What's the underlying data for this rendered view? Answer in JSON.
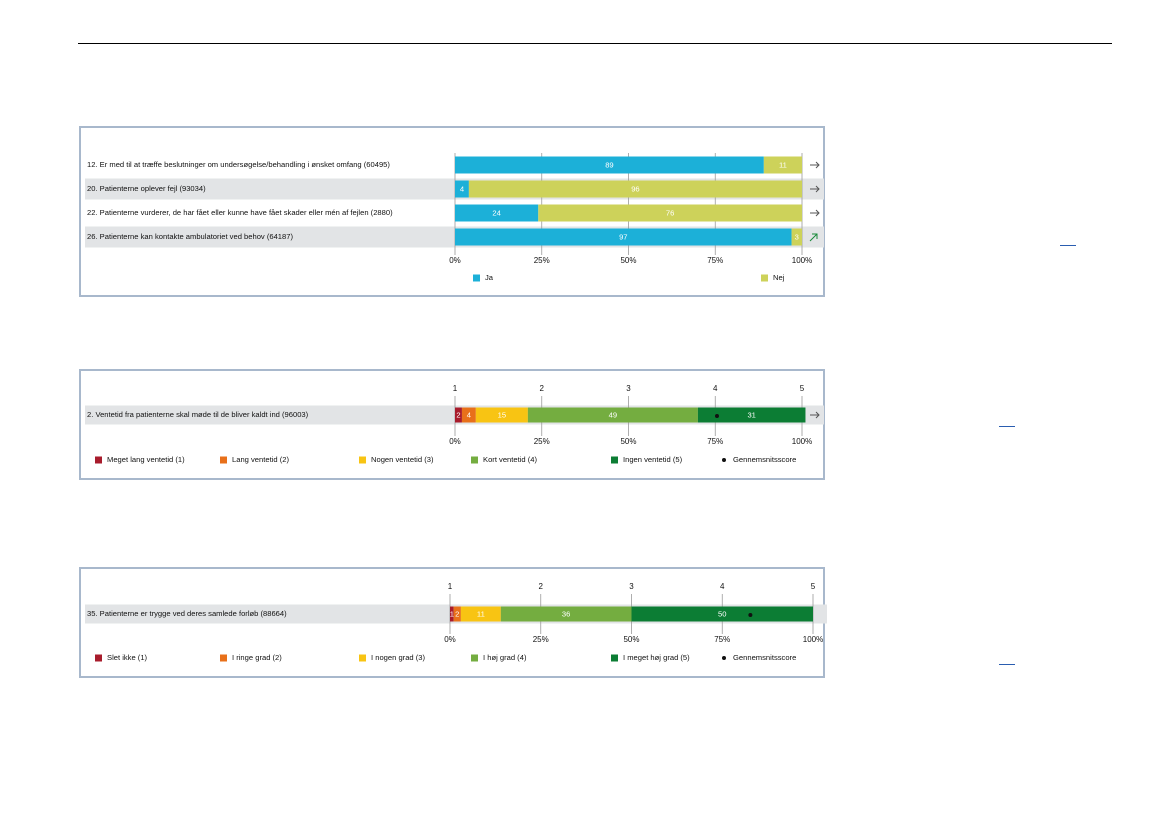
{
  "colors": {
    "ja": "#1cb0d8",
    "nej": "#cdd25a",
    "scale5": [
      "#a81c2c",
      "#e8701a",
      "#f8c413",
      "#74ad40",
      "#0c7d34"
    ],
    "panel_border": "#a8b8cc",
    "row_highlight": "#e2e4e6",
    "grid": "#9a9a9a",
    "trend_up": "#1a8a3a",
    "trend_flat": "#555555"
  },
  "chart_data": [
    {
      "type": "bar",
      "stacked": true,
      "orientation": "horizontal",
      "categories": [
        "12. Er med til at træffe beslutninger om undersøgelse/behandling i ønsket omfang (60495)",
        "20. Patienterne oplever fejl (93034)",
        "22. Patienterne vurderer, de har fået eller kunne have fået skader eller mén af fejlen (2880)",
        "26. Patienterne kan kontakte ambulatoriet ved behov (64187)"
      ],
      "series": [
        {
          "name": "Ja",
          "values": [
            89,
            4,
            24,
            97
          ]
        },
        {
          "name": "Nej",
          "values": [
            11,
            96,
            76,
            3
          ]
        }
      ],
      "highlight_rows": [
        1,
        3
      ],
      "trend_icons": [
        "arrow-right-icon",
        "arrow-right-icon",
        "arrow-right-icon",
        "arrow-up-right-icon"
      ],
      "x_ticks": [
        "0%",
        "25%",
        "50%",
        "75%",
        "100%"
      ],
      "xlim": [
        0,
        100
      ],
      "legend_position": "bottom",
      "grid": true
    },
    {
      "type": "bar",
      "stacked": true,
      "orientation": "horizontal",
      "categories": [
        "2. Ventetid fra patienterne skal møde til de bliver kaldt ind (96003)"
      ],
      "series": [
        {
          "name": "Meget lang ventetid (1)",
          "values": [
            2
          ]
        },
        {
          "name": "Lang ventetid (2)",
          "values": [
            4
          ]
        },
        {
          "name": "Nogen ventetid (3)",
          "values": [
            15
          ]
        },
        {
          "name": "Kort ventetid (4)",
          "values": [
            49
          ]
        },
        {
          "name": "Ingen ventetid (5)",
          "values": [
            31
          ]
        }
      ],
      "score_label": "Gennemsnitsscore",
      "mean_scores": [
        4.02
      ],
      "highlight_rows": [
        0
      ],
      "trend_icons": [
        "arrow-right-icon"
      ],
      "x_ticks": [
        "0%",
        "25%",
        "50%",
        "75%",
        "100%"
      ],
      "score_ticks": [
        "1",
        "2",
        "3",
        "4",
        "5"
      ],
      "xlim": [
        0,
        100
      ],
      "score_range": [
        1,
        5
      ],
      "legend_position": "bottom",
      "grid": true
    },
    {
      "type": "bar",
      "stacked": true,
      "orientation": "horizontal",
      "categories": [
        "35. Patienterne er trygge ved deres samlede forløb (88664)"
      ],
      "series": [
        {
          "name": "Slet ikke (1)",
          "values": [
            1
          ]
        },
        {
          "name": "I ringe grad (2)",
          "values": [
            2
          ]
        },
        {
          "name": "I nogen grad (3)",
          "values": [
            11
          ]
        },
        {
          "name": "I høj grad (4)",
          "values": [
            36
          ]
        },
        {
          "name": "I meget høj grad (5)",
          "values": [
            50
          ]
        }
      ],
      "score_label": "Gennemsnitsscore",
      "mean_scores": [
        4.31
      ],
      "highlight_rows": [
        0
      ],
      "trend_icons": [
        ""
      ],
      "x_ticks": [
        "0%",
        "25%",
        "50%",
        "75%",
        "100%"
      ],
      "score_ticks": [
        "1",
        "2",
        "3",
        "4",
        "5"
      ],
      "xlim": [
        0,
        100
      ],
      "score_range": [
        1,
        5
      ],
      "legend_position": "bottom",
      "grid": true
    }
  ]
}
